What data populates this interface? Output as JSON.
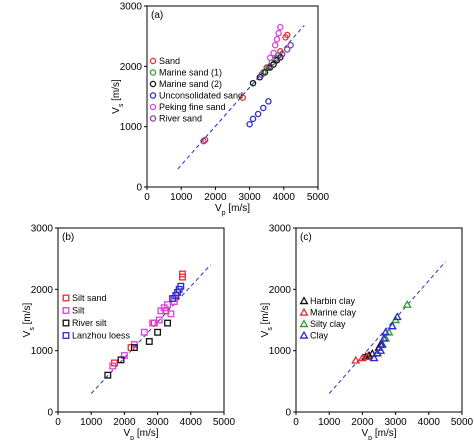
{
  "chart_data": [
    {
      "type": "scatter",
      "panel": "(a)",
      "xlabel": "V",
      "xlabel_sub": "p",
      "xlabel_unit": " [m/s]",
      "ylabel": "V",
      "ylabel_sub": "s",
      "ylabel_unit": " [m/s]",
      "xlim": [
        0,
        5000
      ],
      "ylim": [
        0,
        3000
      ],
      "xticks": [
        "0",
        "1000",
        "2000",
        "3000",
        "4000",
        "5000"
      ],
      "yticks": [
        "0",
        "1000",
        "2000",
        "3000"
      ],
      "trend_line": {
        "x": [
          900,
          4600
        ],
        "y": [
          300,
          2680
        ]
      },
      "legend_position": "left",
      "series": [
        {
          "name": "Sand",
          "marker": "circle",
          "color": "#e03030",
          "points": [
            [
              1700,
              780
            ],
            [
              2800,
              1480
            ],
            [
              3500,
              1980
            ],
            [
              3900,
              2250
            ],
            [
              4050,
              2480
            ],
            [
              4100,
              2520
            ]
          ]
        },
        {
          "name": "Marine sand (1)",
          "marker": "circle",
          "color": "#2aa02a",
          "points": [
            [
              3400,
              1900
            ],
            [
              3550,
              1980
            ],
            [
              3650,
              2060
            ],
            [
              3750,
              2120
            ],
            [
              3850,
              2180
            ]
          ]
        },
        {
          "name": "Marine sand (2)",
          "marker": "circle",
          "color": "#111111",
          "points": [
            [
              3100,
              1720
            ],
            [
              3300,
              1820
            ],
            [
              3450,
              1900
            ],
            [
              3600,
              1980
            ],
            [
              3700,
              2030
            ],
            [
              3800,
              2100
            ],
            [
              3900,
              2150
            ]
          ]
        },
        {
          "name": "Unconsolidated sand",
          "marker": "circle",
          "color": "#2a2ad0",
          "points": [
            [
              3000,
              1040
            ],
            [
              3100,
              1130
            ],
            [
              3250,
              1210
            ],
            [
              3400,
              1310
            ],
            [
              3550,
              1420
            ]
          ]
        },
        {
          "name": "Peking fine sand",
          "marker": "circle",
          "color": "#e040e0",
          "points": [
            [
              3600,
              2140
            ],
            [
              3700,
              2220
            ],
            [
              3750,
              2350
            ],
            [
              3800,
              2450
            ],
            [
              3850,
              2550
            ],
            [
              3900,
              2650
            ]
          ]
        },
        {
          "name": "River sand",
          "marker": "circle",
          "color": "#8040a0",
          "points": [
            [
              1650,
              760
            ],
            [
              3350,
              1860
            ],
            [
              3600,
              2000
            ],
            [
              3800,
              2130
            ],
            [
              3950,
              2200
            ],
            [
              4100,
              2280
            ],
            [
              4200,
              2350
            ]
          ]
        }
      ]
    },
    {
      "type": "scatter",
      "panel": "(b)",
      "xlabel": "V",
      "xlabel_sub": "p",
      "xlabel_unit": " [m/s]",
      "ylabel": "V",
      "ylabel_sub": "s",
      "ylabel_unit": " [m/s]",
      "xlim": [
        0,
        5000
      ],
      "ylim": [
        0,
        3000
      ],
      "xticks": [
        "0",
        "1000",
        "2000",
        "3000",
        "4000",
        "5000"
      ],
      "yticks": [
        "0",
        "1000",
        "2000",
        "3000"
      ],
      "trend_line": {
        "x": [
          1000,
          4600
        ],
        "y": [
          300,
          2400
        ]
      },
      "legend_position": "left",
      "series": [
        {
          "name": "Silt sand",
          "marker": "square",
          "color": "#e03030",
          "points": [
            [
              3750,
              2200
            ],
            [
              3750,
              2250
            ],
            [
              3500,
              1850
            ],
            [
              3250,
              1650
            ],
            [
              2900,
              1450
            ],
            [
              2200,
              1050
            ],
            [
              1700,
              800
            ]
          ]
        },
        {
          "name": "Silt",
          "marker": "square",
          "color": "#e040e0",
          "points": [
            [
              1650,
              750
            ],
            [
              2000,
              920
            ],
            [
              2300,
              1100
            ],
            [
              2600,
              1300
            ],
            [
              2850,
              1450
            ],
            [
              3050,
              1500
            ],
            [
              3100,
              1650
            ],
            [
              3200,
              1700
            ],
            [
              3300,
              1750
            ],
            [
              3400,
              1600
            ],
            [
              3500,
              1800
            ],
            [
              3550,
              1900
            ]
          ]
        },
        {
          "name": "River silt",
          "marker": "square",
          "color": "#111111",
          "points": [
            [
              1500,
              600
            ],
            [
              1900,
              850
            ],
            [
              2300,
              1050
            ],
            [
              2750,
              1150
            ],
            [
              3000,
              1300
            ],
            [
              3300,
              1450
            ]
          ]
        },
        {
          "name": "Lanzhou loess",
          "marker": "square",
          "color": "#2a2ad0",
          "points": [
            [
              3450,
              1850
            ],
            [
              3550,
              1900
            ],
            [
              3600,
              1950
            ],
            [
              3650,
              2000
            ],
            [
              3700,
              2050
            ]
          ]
        }
      ]
    },
    {
      "type": "scatter",
      "panel": "(c)",
      "xlabel": "V",
      "xlabel_sub": "p",
      "xlabel_unit": " [m/s]",
      "ylabel": "V",
      "ylabel_sub": "s",
      "ylabel_unit": " [m/s]",
      "xlim": [
        0,
        5000
      ],
      "ylim": [
        0,
        3000
      ],
      "xticks": [
        "0",
        "1000",
        "2000",
        "3000",
        "4000",
        "5000"
      ],
      "yticks": [
        "0",
        "1000",
        "2000",
        "3000"
      ],
      "trend_line": {
        "x": [
          1000,
          4500
        ],
        "y": [
          300,
          2450
        ]
      },
      "legend_position": "top-left",
      "series": [
        {
          "name": "Harbin clay",
          "marker": "triangle",
          "color": "#111111",
          "points": [
            [
              2100,
              900
            ],
            [
              2200,
              920
            ],
            [
              2300,
              950
            ],
            [
              2450,
              960
            ],
            [
              2500,
              1050
            ],
            [
              2550,
              1100
            ]
          ]
        },
        {
          "name": "Marine clay",
          "marker": "triangle",
          "color": "#e03030",
          "points": [
            [
              1800,
              840
            ],
            [
              2000,
              880
            ],
            [
              2150,
              900
            ]
          ]
        },
        {
          "name": "Silty clay",
          "marker": "triangle",
          "color": "#2aa02a",
          "points": [
            [
              2700,
              1200
            ],
            [
              2800,
              1300
            ],
            [
              2900,
              1400
            ],
            [
              3000,
              1500
            ],
            [
              3350,
              1750
            ]
          ]
        },
        {
          "name": "Clay",
          "marker": "triangle",
          "color": "#2a2ad0",
          "points": [
            [
              2350,
              880
            ],
            [
              2450,
              960
            ],
            [
              2550,
              1000
            ],
            [
              2600,
              1100
            ],
            [
              2650,
              1200
            ],
            [
              2700,
              1300
            ],
            [
              2900,
              1400
            ],
            [
              3050,
              1550
            ]
          ]
        }
      ]
    }
  ]
}
